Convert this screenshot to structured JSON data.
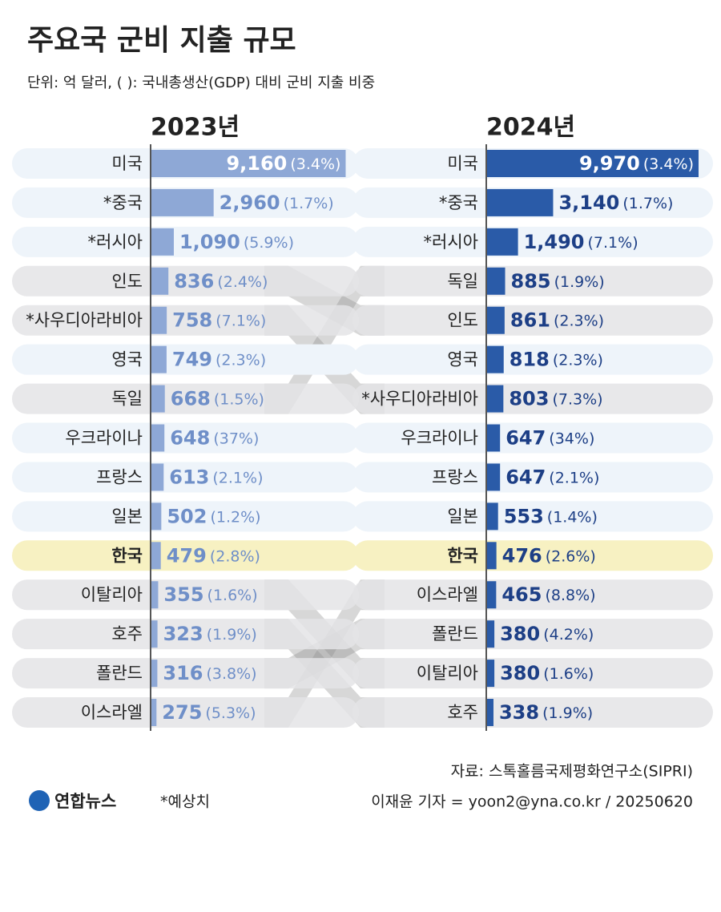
{
  "title": "주요국 군비 지출 규모",
  "subtitle": "단위: 억 달러, ( ): 국내총생산(GDP) 대비 군비 지출 비중",
  "chart_data": [
    {
      "type": "bar",
      "title": "2023년",
      "color": "#8ea8d6",
      "label_color": "#6f8fc8",
      "highlight_index": 10,
      "categories": [
        "미국",
        "*중국",
        "*러시아",
        "인도",
        "*사우디아라비아",
        "영국",
        "독일",
        "우크라이나",
        "프랑스",
        "일본",
        "한국",
        "이탈리아",
        "호주",
        "폴란드",
        "이스라엘"
      ],
      "values": [
        9160,
        2960,
        1090,
        836,
        758,
        749,
        668,
        648,
        613,
        502,
        479,
        355,
        323,
        316,
        275
      ],
      "value_labels": [
        "9,160",
        "2,960",
        "1,090",
        "836",
        "758",
        "749",
        "668",
        "648",
        "613",
        "502",
        "479",
        "355",
        "323",
        "316",
        "275"
      ],
      "shares": [
        "(3.4%)",
        "(1.7%)",
        "(5.9%)",
        "(2.4%)",
        "(7.1%)",
        "(2.3%)",
        "(1.5%)",
        "(37%)",
        "(2.1%)",
        "(1.2%)",
        "(2.8%)",
        "(1.6%)",
        "(1.9%)",
        "(3.8%)",
        "(5.3%)"
      ]
    },
    {
      "type": "bar",
      "title": "2024년",
      "color": "#2a5ba8",
      "label_color": "#1d3f86",
      "highlight_index": 10,
      "categories": [
        "미국",
        "*중국",
        "*러시아",
        "독일",
        "인도",
        "영국",
        "*사우디아라비아",
        "우크라이나",
        "프랑스",
        "일본",
        "한국",
        "이스라엘",
        "폴란드",
        "이탈리아",
        "호주"
      ],
      "values": [
        9970,
        3140,
        1490,
        885,
        861,
        818,
        803,
        647,
        647,
        553,
        476,
        465,
        380,
        380,
        338
      ],
      "value_labels": [
        "9,970",
        "3,140",
        "1,490",
        "885",
        "861",
        "818",
        "803",
        "647",
        "647",
        "553",
        "476",
        "465",
        "380",
        "380",
        "338"
      ],
      "shares": [
        "(3.4%)",
        "(1.7%)",
        "(7.1%)",
        "(1.9%)",
        "(2.3%)",
        "(2.3%)",
        "(7.3%)",
        "(34%)",
        "(2.1%)",
        "(1.4%)",
        "(2.6%)",
        "(8.8%)",
        "(4.2%)",
        "(1.6%)",
        "(1.9%)"
      ]
    }
  ],
  "source": "자료: 스톡홀름국제평화연구소(SIPRI)",
  "byline": "이재윤 기자 = yoon2@yna.co.kr / 20250620",
  "note": "*예상치",
  "logo": "연합뉴스"
}
